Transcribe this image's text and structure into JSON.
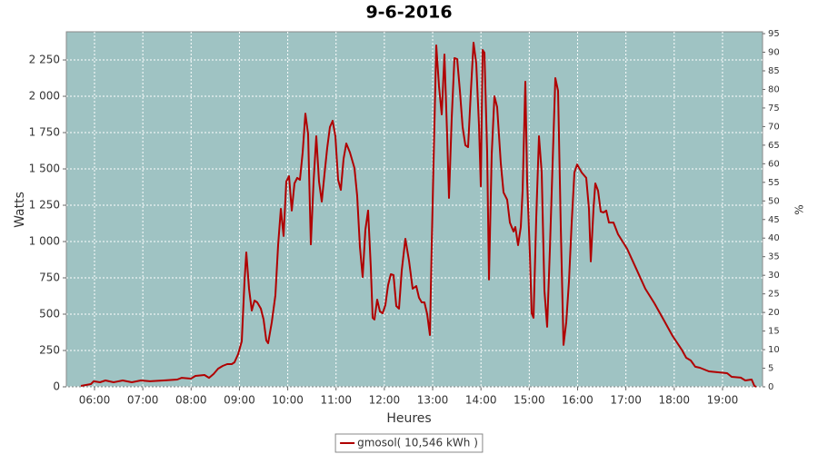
{
  "chart_data": {
    "type": "line",
    "title": "9-6-2016",
    "x_label": "Heures",
    "y_label": "Watts",
    "y2_label": "%",
    "x": [
      5.718,
      5.925,
      5.981,
      6.113,
      6.226,
      6.395,
      6.583,
      6.771,
      6.96,
      7.148,
      7.43,
      7.712,
      7.806,
      7.994,
      8.088,
      8.277,
      8.371,
      8.465,
      8.559,
      8.653,
      8.747,
      8.841,
      8.898,
      8.973,
      9.048,
      9.104,
      9.142,
      9.199,
      9.255,
      9.311,
      9.368,
      9.443,
      9.5,
      9.556,
      9.594,
      9.669,
      9.744,
      9.801,
      9.857,
      9.914,
      9.97,
      10.026,
      10.083,
      10.139,
      10.196,
      10.252,
      10.309,
      10.365,
      10.422,
      10.478,
      10.534,
      10.591,
      10.647,
      10.704,
      10.76,
      10.817,
      10.873,
      10.93,
      10.986,
      11.042,
      11.099,
      11.155,
      11.212,
      11.287,
      11.381,
      11.438,
      11.494,
      11.55,
      11.607,
      11.663,
      11.72,
      11.757,
      11.795,
      11.851,
      11.908,
      11.964,
      12.021,
      12.077,
      12.134,
      12.19,
      12.247,
      12.303,
      12.359,
      12.435,
      12.51,
      12.585,
      12.661,
      12.717,
      12.773,
      12.83,
      12.886,
      12.943,
      12.98,
      13.018,
      13.074,
      13.131,
      13.187,
      13.244,
      13.3,
      13.338,
      13.394,
      13.451,
      13.507,
      13.564,
      13.62,
      13.677,
      13.733,
      13.789,
      13.846,
      13.902,
      13.959,
      13.996,
      14.034,
      14.072,
      14.128,
      14.166,
      14.222,
      14.279,
      14.335,
      14.41,
      14.467,
      14.542,
      14.598,
      14.674,
      14.711,
      14.768,
      14.824,
      14.862,
      14.918,
      14.956,
      15.012,
      15.05,
      15.088,
      15.144,
      15.201,
      15.257,
      15.313,
      15.37,
      15.426,
      15.483,
      15.539,
      15.596,
      15.652,
      15.709,
      15.765,
      15.821,
      15.878,
      15.934,
      15.991,
      16.085,
      16.179,
      16.235,
      16.273,
      16.329,
      16.367,
      16.424,
      16.48,
      16.536,
      16.593,
      16.649,
      16.743,
      16.837,
      16.932,
      17.026,
      17.214,
      17.402,
      17.59,
      17.778,
      17.966,
      18.155,
      18.249,
      18.343,
      18.437,
      18.531,
      18.719,
      18.907,
      19.095,
      19.189,
      19.378,
      19.472,
      19.604,
      19.66,
      19.697
    ],
    "series": [
      {
        "name": "gmosol( 10,546 kWh )",
        "color": "#b00000",
        "values": [
          6,
          19,
          38,
          31,
          44,
          31,
          44,
          31,
          44,
          38,
          44,
          50,
          62,
          56,
          75,
          81,
          62,
          88,
          125,
          144,
          156,
          156,
          169,
          225,
          313,
          725,
          925,
          675,
          525,
          594,
          581,
          538,
          463,
          319,
          300,
          444,
          631,
          975,
          1225,
          1038,
          1413,
          1450,
          1213,
          1400,
          1438,
          1425,
          1613,
          1881,
          1738,
          981,
          1413,
          1725,
          1413,
          1275,
          1463,
          1644,
          1788,
          1831,
          1725,
          1425,
          1356,
          1569,
          1675,
          1613,
          1506,
          1313,
          963,
          756,
          1081,
          1213,
          819,
          475,
          463,
          600,
          519,
          506,
          563,
          700,
          775,
          769,
          556,
          538,
          800,
          1019,
          869,
          675,
          694,
          613,
          581,
          581,
          500,
          356,
          975,
          1538,
          2350,
          2069,
          1875,
          2288,
          1725,
          1300,
          1850,
          2263,
          2256,
          2038,
          1788,
          1663,
          1650,
          2025,
          2369,
          2225,
          1800,
          1381,
          2319,
          2300,
          1613,
          738,
          1600,
          2000,
          1925,
          1538,
          1338,
          1288,
          1131,
          1069,
          1100,
          975,
          1100,
          1350,
          2100,
          1413,
          913,
          506,
          475,
          1163,
          1725,
          1475,
          663,
          413,
          944,
          1538,
          2125,
          2038,
          1100,
          288,
          444,
          725,
          1131,
          1475,
          1531,
          1475,
          1438,
          1225,
          863,
          1225,
          1400,
          1350,
          1206,
          1200,
          1213,
          1131,
          1131,
          1050,
          1000,
          950,
          813,
          675,
          575,
          463,
          350,
          256,
          200,
          181,
          138,
          131,
          106,
          100,
          94,
          69,
          63,
          44,
          50,
          6,
          0
        ]
      }
    ],
    "xlim": [
      5.417,
      19.829
    ],
    "xticks": [
      {
        "value": 6,
        "label": "06:00"
      },
      {
        "value": 7,
        "label": "07:00"
      },
      {
        "value": 8,
        "label": "08:00"
      },
      {
        "value": 9,
        "label": "09:00"
      },
      {
        "value": 10,
        "label": "10:00"
      },
      {
        "value": 11,
        "label": "11:00"
      },
      {
        "value": 12,
        "label": "12:00"
      },
      {
        "value": 13,
        "label": "13:00"
      },
      {
        "value": 14,
        "label": "14:00"
      },
      {
        "value": 15,
        "label": "15:00"
      },
      {
        "value": 16,
        "label": "16:00"
      },
      {
        "value": 17,
        "label": "17:00"
      },
      {
        "value": 18,
        "label": "18:00"
      },
      {
        "value": 19,
        "label": "19:00"
      }
    ],
    "ylim": [
      0,
      2444
    ],
    "yticks": [
      0,
      250,
      500,
      750,
      {
        "value": 1000,
        "label": "1 000"
      },
      {
        "value": 1250,
        "label": "1 250"
      },
      {
        "value": 1500,
        "label": "1 500"
      },
      {
        "value": 1750,
        "label": "1 750"
      },
      {
        "value": 2000,
        "label": "2 000"
      },
      {
        "value": 2250,
        "label": "2 250"
      }
    ],
    "y2lim": [
      0,
      95.5
    ],
    "y2ticks": [
      0,
      5,
      10,
      15,
      20,
      25,
      30,
      35,
      40,
      45,
      50,
      55,
      60,
      65,
      70,
      75,
      80,
      85,
      90,
      95
    ],
    "grid": true,
    "plot_background": "#9fc3c3",
    "legend": "bottom"
  }
}
